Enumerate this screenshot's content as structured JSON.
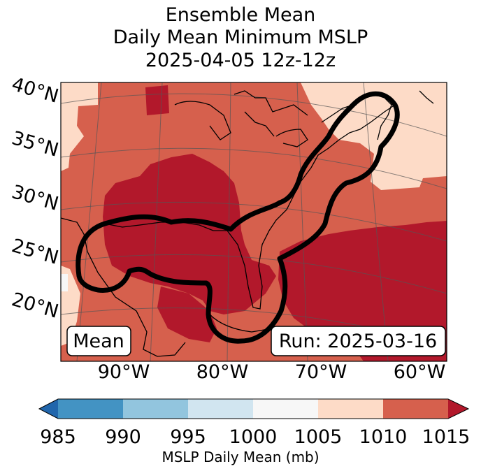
{
  "title": {
    "line1": "Ensemble Mean",
    "line2": "Daily Mean Minimum MSLP",
    "line3": "2025-04-05 12z-12z"
  },
  "map": {
    "lat_labels": [
      "40°N",
      "35°N",
      "30°N",
      "25°N",
      "20°N"
    ],
    "lon_labels": [
      "90°W",
      "80°W",
      "70°W",
      "60°W"
    ],
    "left_badge": "Mean",
    "right_badge": "Run: 2025-03-16"
  },
  "colorbar": {
    "ticks": [
      "985",
      "990",
      "995",
      "1000",
      "1005",
      "1010",
      "1015"
    ],
    "label": "MSLP Daily Mean (mb)",
    "colors": {
      "under": "#2166ac",
      "985_990": "#4393c3",
      "990_995": "#92c5de",
      "995_1000": "#d1e5f0",
      "1000_1005": "#f7f7f7",
      "1005_1010": "#fddbc7",
      "1010_1015": "#d6604d",
      "over": "#b2182b"
    }
  }
}
